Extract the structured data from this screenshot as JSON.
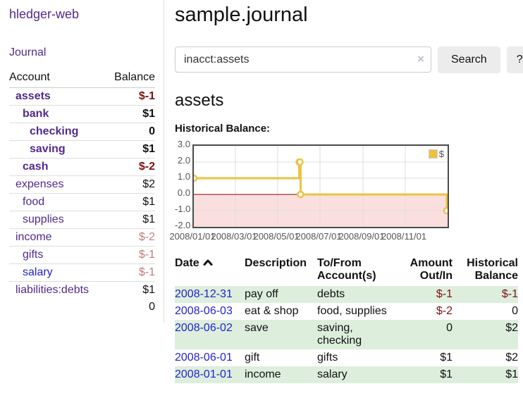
{
  "sidebar": {
    "brand": "hledger-web",
    "nav": {
      "journal_label": "Journal"
    },
    "accounts_table": {
      "headers": {
        "account": "Account",
        "balance": "Balance"
      },
      "rows": [
        {
          "label": "assets",
          "depth": 0,
          "bold": true,
          "balance": "$-1",
          "negative": "strong"
        },
        {
          "label": "bank",
          "depth": 1,
          "bold": true,
          "balance": "$1"
        },
        {
          "label": "checking",
          "depth": 2,
          "bold": true,
          "balance": "0"
        },
        {
          "label": "saving",
          "depth": 2,
          "bold": true,
          "balance": "$1"
        },
        {
          "label": "cash",
          "depth": 1,
          "bold": true,
          "balance": "$-2",
          "negative": "strong"
        },
        {
          "label": "expenses",
          "depth": 0,
          "bold": false,
          "balance": "$2"
        },
        {
          "label": "food",
          "depth": 1,
          "bold": false,
          "balance": "$1"
        },
        {
          "label": "supplies",
          "depth": 1,
          "bold": false,
          "balance": "$1"
        },
        {
          "label": "income",
          "depth": 0,
          "bold": false,
          "balance": "$-2",
          "negative": "soft"
        },
        {
          "label": "gifts",
          "depth": 1,
          "bold": false,
          "balance": "$-1",
          "negative": "soft"
        },
        {
          "label": "salary",
          "depth": 1,
          "bold": false,
          "balance": "$-1",
          "negative": "soft",
          "link_style": "fresh"
        },
        {
          "label": "liabilities:debts",
          "depth": 0,
          "bold": false,
          "balance": "$1"
        }
      ],
      "total": "0"
    }
  },
  "header": {
    "title": "sample.journal"
  },
  "search": {
    "value": "inacct:assets",
    "clear_icon": "×",
    "search_button": "Search",
    "help_button": "?"
  },
  "account_view": {
    "heading": "assets",
    "chart_label": "Historical Balance:"
  },
  "chart_data": {
    "type": "line",
    "step": true,
    "title": "Historical Balance",
    "series": [
      {
        "name": "$",
        "color": "#edc240",
        "points": [
          [
            "2008/01/01",
            1
          ],
          [
            "2008/06/01",
            2
          ],
          [
            "2008/06/02",
            2
          ],
          [
            "2008/06/03",
            0
          ],
          [
            "2008/12/31",
            -1
          ]
        ]
      }
    ],
    "x_range": [
      "2008/01/01",
      "2009/01/01"
    ],
    "x_ticks": [
      "2008/01/01",
      "2008/03/01",
      "2008/05/01",
      "2008/07/01",
      "2008/09/01",
      "2008/11/01"
    ],
    "y_ticks": [
      "3.0",
      "2.0",
      "1.0",
      "0.0",
      "-1.0",
      "-2.0"
    ],
    "ylim": [
      -2,
      3
    ],
    "grid": true,
    "legend": {
      "label": "$",
      "position": "top-right"
    },
    "colors": {
      "negative_region": "#fbdfdf",
      "zero_line": "#8b0000",
      "grid": "#ddd",
      "border": "#4d4d4d"
    }
  },
  "register": {
    "sort": {
      "column": "date",
      "direction": "asc"
    },
    "headers": {
      "date": "Date",
      "description": "Description",
      "accounts": "To/From Account(s)",
      "amount": "Amount Out/In",
      "balance": "Historical Balance"
    },
    "rows": [
      {
        "date": "2008-12-31",
        "description": "pay off",
        "accounts": "debts",
        "amount": "$-1",
        "balance": "$-1",
        "amount_negative": true,
        "balance_negative": true
      },
      {
        "date": "2008-06-03",
        "description": "eat & shop",
        "accounts": "food, supplies",
        "amount": "$-2",
        "balance": "0",
        "amount_negative": true,
        "balance_negative": false
      },
      {
        "date": "2008-06-02",
        "description": "save",
        "accounts": "saving, checking",
        "amount": "0",
        "balance": "$2",
        "amount_negative": false,
        "balance_negative": false
      },
      {
        "date": "2008-06-01",
        "description": "gift",
        "accounts": "gifts",
        "amount": "$1",
        "balance": "$2",
        "amount_negative": false,
        "balance_negative": false
      },
      {
        "date": "2008-01-01",
        "description": "income",
        "accounts": "salary",
        "amount": "$1",
        "balance": "$1",
        "amount_negative": false,
        "balance_negative": false
      }
    ]
  }
}
